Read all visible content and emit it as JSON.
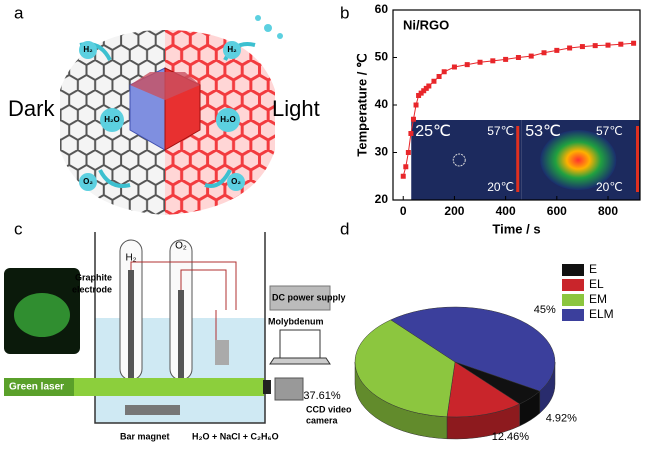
{
  "panel_labels": [
    "a",
    "b",
    "c",
    "d"
  ],
  "diagram_a": {
    "left_label": "Dark",
    "right_label": "Light",
    "molecules": [
      "H₂",
      "H₂O",
      "O₂",
      "H₂",
      "H₂O",
      "O₂"
    ]
  },
  "chart_data": [
    {
      "type": "line",
      "title": "Ni/RGO",
      "x_label": "Time / s",
      "y_label": "Temperature / ℃",
      "x": [
        0,
        10,
        20,
        30,
        40,
        50,
        60,
        70,
        80,
        90,
        100,
        120,
        140,
        160,
        200,
        250,
        300,
        350,
        400,
        450,
        500,
        550,
        600,
        650,
        700,
        750,
        800,
        850,
        900
      ],
      "values": [
        25,
        27,
        30,
        34,
        37,
        40,
        42,
        42.5,
        43,
        43.5,
        44,
        45,
        46,
        47,
        48,
        48.5,
        49,
        49.3,
        49.6,
        50,
        50.3,
        51,
        51.5,
        52,
        52.3,
        52.5,
        52.6,
        52.8,
        53
      ],
      "color": "#e8262a",
      "marker": "square",
      "xlim": [
        -40,
        925
      ],
      "ylim": [
        20,
        60
      ],
      "xticks": [
        0,
        200,
        400,
        600,
        800
      ],
      "yticks": [
        20,
        30,
        40,
        50,
        60
      ],
      "annotations": [
        "25℃",
        "57℃",
        "20℃",
        "53℃",
        "57℃",
        "20℃"
      ]
    },
    {
      "type": "pie",
      "categories": [
        "E",
        "EL",
        "EM",
        "ELM"
      ],
      "values": [
        4.92,
        12.46,
        37.61,
        45
      ],
      "value_labels": [
        "4.92%",
        "12.46%",
        "37.61%",
        "45%"
      ],
      "colors": [
        "#111111",
        "#c9252b",
        "#8cc63f",
        "#3b3f9c"
      ],
      "legend": "top-right",
      "style": "3d"
    }
  ],
  "diagram_c": {
    "h2": "H₂",
    "o2": "O₂",
    "graphite": [
      "Graphite",
      "electrode"
    ],
    "dc": "DC power supply",
    "molybdenum": "Molybdenum",
    "laser": "Green laser",
    "camera": [
      "CCD video",
      "camera"
    ],
    "magnet": "Bar magnet",
    "solution": "H₂O + NaCl + C₂H₆O"
  }
}
